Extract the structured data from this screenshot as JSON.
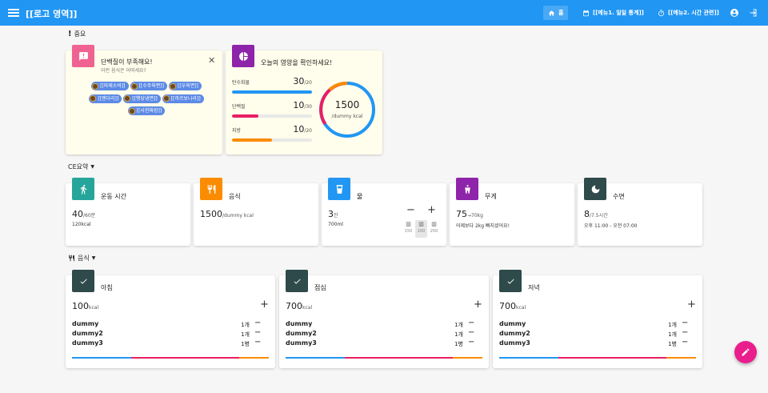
{
  "appbar": {
    "title": "[[로고 영역]]",
    "home": "홈",
    "menu1": "[[메뉴1. 일일 통계]]",
    "menu2": "[[메뉴2. 시간 관련]]"
  },
  "sections": {
    "important": "중요",
    "summary": "CE요약",
    "food": "음식"
  },
  "alert": {
    "title": "단백질이 부족해요!",
    "subtitle": "이런 음식은 어떠세요?",
    "foods": [
      "[[마제소바]]",
      "[[수주육편]]",
      "[[우육면]]",
      "[[멘다리]]",
      "[[행당냉면]]",
      "[[까르보나라]]",
      "[[사천짜장]]"
    ]
  },
  "nutrition": {
    "title": "오늘의 영양을 확인하세요!",
    "items": [
      {
        "label": "탄수화물",
        "value": "30",
        "total": "/20",
        "fraction": 1.0,
        "color": "#2196f3"
      },
      {
        "label": "단백질",
        "value": "10",
        "total": "/30",
        "fraction": 0.33,
        "color": "#e91e63"
      },
      {
        "label": "지방",
        "value": "10",
        "total": "/20",
        "fraction": 0.5,
        "color": "#fb8c00"
      }
    ],
    "calories": "1500",
    "calories_unit": "/dummy kcal"
  },
  "summary": [
    {
      "title": "운동 시간",
      "value": "40",
      "unit": "/60분",
      "sub": "120kcal",
      "color": "#26a69a"
    },
    {
      "title": "음식",
      "value": "1500",
      "unit": "/dummy kcal",
      "sub": "",
      "color": "#fb8c00"
    },
    {
      "title": "물",
      "value": "3",
      "unit": "잔",
      "sub": "700ml",
      "color": "#2196f3"
    },
    {
      "title": "무게",
      "value": "75",
      "unit": "→70kg",
      "sub": "어제보다 2kg 빠지셨어요!",
      "color": "#8e24aa"
    },
    {
      "title": "수면",
      "value": "8",
      "unit": "/7.5시간",
      "sub": "오후 11:00 - 오전 07:00",
      "color": "#2e4a4a"
    }
  ],
  "water_sizes": [
    "150",
    "200",
    "250"
  ],
  "meals": [
    {
      "title": "아침",
      "kcal": "100",
      "unit": "kcal",
      "items": [
        {
          "name": "dummy",
          "qty": "1개"
        },
        {
          "name": "dummy2",
          "qty": "1개"
        },
        {
          "name": "dummy3",
          "qty": "1병"
        }
      ]
    },
    {
      "title": "점심",
      "kcal": "700",
      "unit": "kcal",
      "items": [
        {
          "name": "dummy",
          "qty": "1개"
        },
        {
          "name": "dummy2",
          "qty": "1개"
        },
        {
          "name": "dummy3",
          "qty": "1병"
        }
      ]
    },
    {
      "title": "저녁",
      "kcal": "700",
      "unit": "kcal",
      "items": [
        {
          "name": "dummy",
          "qty": "1개"
        },
        {
          "name": "dummy2",
          "qty": "1개"
        },
        {
          "name": "dummy3",
          "qty": "1병"
        }
      ]
    }
  ],
  "colors": {
    "primary": "#2196f3",
    "pink": "#e91e63",
    "orange": "#fb8c00",
    "purple": "#8e24aa",
    "teal": "#26a69a",
    "dark": "#2e4a4a",
    "notice": "#fffdeb",
    "fab": "#e91e8c"
  }
}
